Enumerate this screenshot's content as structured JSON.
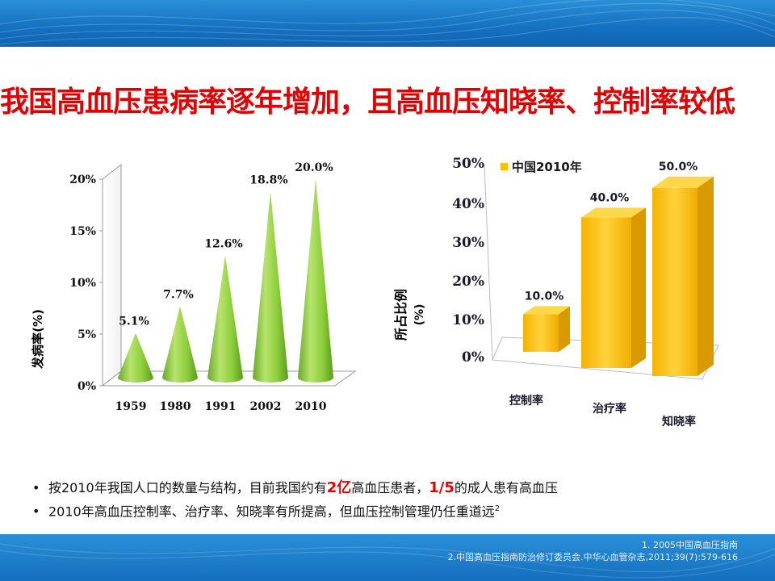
{
  "title": "我国高血压患病率逐年增加，且高血压知晓率、控制率较低",
  "chart_data": [
    {
      "type": "bar",
      "ylabel": "发病率(%)",
      "categories": [
        "1959",
        "1980",
        "1991",
        "2002",
        "2010"
      ],
      "values": [
        5.1,
        7.7,
        12.6,
        18.8,
        20.0
      ],
      "data_labels": [
        "5.1%",
        "7.7%",
        "12.6%",
        "18.8%",
        "20.0%"
      ],
      "yticks": [
        "0%",
        "5%",
        "10%",
        "15%",
        "20%"
      ],
      "ylim": [
        0,
        20
      ],
      "color": "#8ccd3a"
    },
    {
      "type": "bar",
      "ylabel": "所占比例 (%)",
      "categories": [
        "控制率",
        "治疗率",
        "知晓率"
      ],
      "series": [
        {
          "name": "中国2010年",
          "values": [
            10.0,
            40.0,
            50.0
          ]
        }
      ],
      "data_labels": [
        "10.0%",
        "40.0%",
        "50.0%"
      ],
      "yticks": [
        "0%",
        "10%",
        "20%",
        "30%",
        "40%",
        "50%"
      ],
      "ylim": [
        0,
        50
      ],
      "legend": "top-left",
      "color": "#ffc000"
    }
  ],
  "bullets": [
    {
      "pre": "按2010年我国人口的数量与结构，目前我国约有",
      "hl1": "2亿",
      "mid": "高血压患者，",
      "hl2": "1/5",
      "post": "的成人患有高血压"
    },
    {
      "text": "2010年高血压控制率、治疗率、知晓率有所提高，但血压控制管理仍任重道远",
      "sup": "2"
    }
  ],
  "bullet_symbol": "•",
  "references": [
    "1. 2005中国高血压指南",
    "2.中国高血压指南防治修订委员会.中华心血管杂志,2011;39(7):579-616"
  ]
}
